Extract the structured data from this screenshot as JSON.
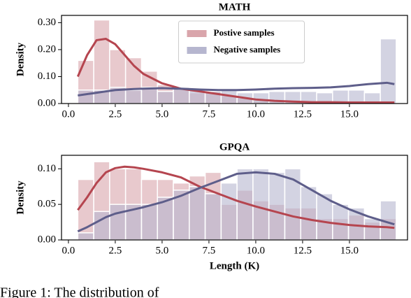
{
  "chart_data": [
    {
      "type": "histogram",
      "title": "MATH",
      "ylabel": "Density",
      "legend": "upper center",
      "bins": [
        0.5,
        1.35,
        2.2,
        3.05,
        3.9,
        4.75,
        5.6,
        6.45,
        7.3,
        8.15,
        9,
        9.85,
        10.7,
        11.55,
        12.4,
        13.25,
        14.1,
        14.95,
        15.8,
        16.65,
        17.5
      ],
      "xlim": [
        -0.37,
        18.1
      ],
      "ylim": [
        0,
        0.327
      ],
      "xticks": [
        {
          "value": 0,
          "label": "0.0"
        },
        2.5,
        {
          "value": 5,
          "label": "5.0"
        },
        7.5,
        {
          "value": 10,
          "label": "10.0"
        },
        12.5,
        {
          "value": 15,
          "label": "15.0"
        }
      ],
      "yticks": [
        {
          "value": 0,
          "label": "0.00"
        },
        {
          "value": 0.1,
          "label": "0.10"
        },
        {
          "value": 0.2,
          "label": "0.20"
        },
        {
          "value": 0.3,
          "label": "0.30"
        }
      ],
      "series": [
        {
          "name": "Postive samples",
          "color": "#d9a5ab",
          "line_color": "#b5454f",
          "values": [
            0.16,
            0.31,
            0.2,
            0.17,
            0.12,
            0.07,
            0.06,
            0.04,
            0.045,
            0.03,
            0.02,
            0.01,
            0.008,
            0.006,
            0.005,
            0.005,
            0.004,
            0.004,
            0.004,
            0.004
          ],
          "kde": {
            "x": [
              0.5,
              1,
              1.5,
              2,
              2.5,
              3,
              3.5,
              4,
              5,
              6,
              7,
              8,
              9,
              10,
              11,
              12,
              13,
              14,
              15,
              16,
              17,
              17.4
            ],
            "values": [
              0.1,
              0.18,
              0.235,
              0.24,
              0.22,
              0.18,
              0.14,
              0.11,
              0.075,
              0.055,
              0.045,
              0.035,
              0.025,
              0.015,
              0.01,
              0.007,
              0.005,
              0.005,
              0.004,
              0.004,
              0.004,
              0.004
            ]
          }
        },
        {
          "name": "Negative samples",
          "color": "#b6b6cf",
          "line_color": "#5e5e8a",
          "values": [
            0.05,
            0.05,
            0.06,
            0.05,
            0.06,
            0.045,
            0.06,
            0.05,
            0.045,
            0.05,
            0.04,
            0.04,
            0.045,
            0.045,
            0.045,
            0.04,
            0.05,
            0.05,
            0.04,
            0.24
          ],
          "kde": {
            "x": [
              0.5,
              1,
              1.5,
              2,
              2.5,
              3,
              3.5,
              4,
              5,
              6,
              7,
              8,
              9,
              10,
              11,
              12,
              13,
              14,
              15,
              16,
              17,
              17.4
            ],
            "values": [
              0.03,
              0.035,
              0.04,
              0.045,
              0.05,
              0.052,
              0.054,
              0.055,
              0.057,
              0.055,
              0.052,
              0.05,
              0.05,
              0.052,
              0.055,
              0.057,
              0.058,
              0.06,
              0.065,
              0.072,
              0.077,
              0.072
            ]
          }
        }
      ]
    },
    {
      "type": "histogram",
      "title": "GPQA",
      "ylabel": "Density",
      "xlabel": "Length (K)",
      "bins": [
        0.5,
        1.35,
        2.2,
        3.05,
        3.9,
        4.75,
        5.6,
        6.45,
        7.3,
        8.15,
        9,
        9.85,
        10.7,
        11.55,
        12.4,
        13.25,
        14.1,
        14.95,
        15.8,
        16.65,
        17.5
      ],
      "xlim": [
        -0.37,
        18.1
      ],
      "ylim": [
        0,
        0.119
      ],
      "xticks": [
        {
          "value": 0,
          "label": "0.0"
        },
        2.5,
        {
          "value": 5,
          "label": "5.0"
        },
        7.5,
        {
          "value": 10,
          "label": "10.0"
        },
        12.5,
        {
          "value": 15,
          "label": "15.0"
        }
      ],
      "yticks": [
        {
          "value": 0,
          "label": "0.00"
        },
        {
          "value": 0.05,
          "label": "0.05"
        },
        {
          "value": 0.1,
          "label": "0.10"
        }
      ],
      "series": [
        {
          "color": "#d9a5ab",
          "line_color": "#b5454f",
          "values": [
            0.085,
            0.11,
            0.1,
            0.1,
            0.085,
            0.085,
            0.08,
            0.09,
            0.095,
            0.05,
            0.07,
            0.055,
            0.05,
            0.045,
            0.045,
            0.03,
            0.03,
            0.035,
            0.025,
            0.03
          ],
          "kde": {
            "x": [
              0.5,
              1,
              1.5,
              2,
              2.5,
              3,
              3.5,
              4,
              5,
              6,
              7,
              8,
              9,
              10,
              11,
              12,
              13,
              14,
              15,
              16,
              17,
              17.4
            ],
            "values": [
              0.042,
              0.06,
              0.08,
              0.095,
              0.101,
              0.103,
              0.102,
              0.1,
              0.095,
              0.088,
              0.075,
              0.065,
              0.055,
              0.047,
              0.04,
              0.033,
              0.028,
              0.024,
              0.021,
              0.019,
              0.018,
              0.017
            ]
          }
        },
        {
          "color": "#b6b6cf",
          "line_color": "#5e5e8a",
          "values": [
            0.01,
            0.04,
            0.05,
            0.05,
            0.05,
            0.06,
            0.07,
            0.075,
            0.065,
            0.08,
            0.1,
            0.1,
            0.095,
            0.1,
            0.075,
            0.065,
            0.05,
            0.045,
            0.03,
            0.055
          ],
          "kde": {
            "x": [
              0.5,
              1,
              1.5,
              2,
              2.5,
              3,
              3.5,
              4,
              5,
              6,
              7,
              8,
              9,
              10,
              11,
              12,
              13,
              14,
              15,
              16,
              17,
              17.4
            ],
            "values": [
              0.012,
              0.018,
              0.025,
              0.032,
              0.037,
              0.04,
              0.043,
              0.046,
              0.053,
              0.062,
              0.073,
              0.083,
              0.093,
              0.095,
              0.093,
              0.085,
              0.07,
              0.055,
              0.043,
              0.033,
              0.025,
              0.022
            ]
          }
        }
      ]
    }
  ],
  "caption": "Figure 1: The distribution of"
}
